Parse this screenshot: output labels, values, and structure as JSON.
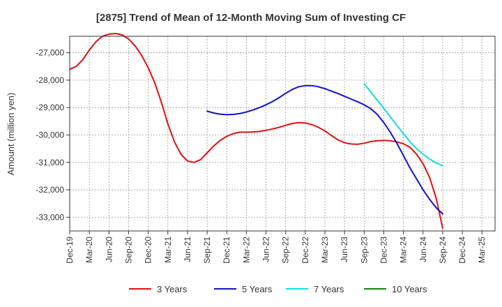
{
  "chart_data": {
    "type": "line",
    "title": "[2875]  Trend of Mean of 12-Month Moving Sum of Investing CF",
    "xlabel": "",
    "ylabel": "Amount (million yen)",
    "ylim": [
      -33500,
      -26400
    ],
    "yticks": [
      -27000,
      -28000,
      -29000,
      -30000,
      -31000,
      -32000,
      -33000
    ],
    "ytick_labels": [
      "-27,000",
      "-28,000",
      "-29,000",
      "-30,000",
      "-31,000",
      "-32,000",
      "-33,000"
    ],
    "xlim": [
      0,
      65
    ],
    "xticks": [
      0,
      3,
      6,
      9,
      12,
      15,
      18,
      21,
      24,
      27,
      30,
      33,
      36,
      39,
      42,
      45,
      48,
      51,
      54,
      57,
      60,
      63
    ],
    "xtick_labels": [
      "Dec-19",
      "Mar-20",
      "Jun-20",
      "Sep-20",
      "Dec-20",
      "Mar-21",
      "Jun-21",
      "Sep-21",
      "Dec-21",
      "Mar-22",
      "Jun-22",
      "Sep-22",
      "Dec-22",
      "Mar-23",
      "Jun-23",
      "Sep-23",
      "Dec-23",
      "Mar-24",
      "Jun-24",
      "Sep-24",
      "Dec-24",
      "Mar-25"
    ],
    "grid": true,
    "legend_position": "bottom",
    "series": [
      {
        "name": "3 Years",
        "color": "#dd1111",
        "x": [
          0,
          1,
          2,
          3,
          4,
          5,
          6,
          7,
          8,
          9,
          10,
          11,
          12,
          13,
          14,
          15,
          16,
          17,
          18,
          19,
          20,
          21,
          22,
          23,
          24,
          25,
          26,
          27,
          28,
          29,
          30,
          31,
          32,
          33,
          34,
          35,
          36,
          37,
          38,
          39,
          40,
          41,
          42,
          43,
          44,
          45,
          46,
          47,
          48,
          49,
          50,
          51,
          52,
          53,
          54,
          55,
          56,
          57
        ],
        "y": [
          -27600,
          -27500,
          -27250,
          -26900,
          -26600,
          -26400,
          -26320,
          -26300,
          -26350,
          -26500,
          -26750,
          -27100,
          -27550,
          -28100,
          -28800,
          -29600,
          -30250,
          -30700,
          -30950,
          -31000,
          -30900,
          -30650,
          -30400,
          -30200,
          -30050,
          -29950,
          -29900,
          -29900,
          -29890,
          -29870,
          -29830,
          -29780,
          -29720,
          -29650,
          -29580,
          -29550,
          -29560,
          -29620,
          -29720,
          -29850,
          -30020,
          -30180,
          -30280,
          -30330,
          -30340,
          -30300,
          -30240,
          -30210,
          -30200,
          -30210,
          -30250,
          -30320,
          -30450,
          -30700,
          -31050,
          -31550,
          -32300,
          -33400
        ]
      },
      {
        "name": "5 Years",
        "color": "#1111cc",
        "x": [
          21,
          22,
          23,
          24,
          25,
          26,
          27,
          28,
          29,
          30,
          31,
          32,
          33,
          34,
          35,
          36,
          37,
          38,
          39,
          40,
          41,
          42,
          43,
          44,
          45,
          46,
          47,
          48,
          49,
          50,
          51,
          52,
          53,
          54,
          55,
          56,
          57
        ],
        "y": [
          -29130,
          -29200,
          -29240,
          -29260,
          -29250,
          -29220,
          -29160,
          -29090,
          -29000,
          -28900,
          -28780,
          -28640,
          -28480,
          -28340,
          -28240,
          -28200,
          -28200,
          -28240,
          -28310,
          -28400,
          -28490,
          -28590,
          -28690,
          -28790,
          -28900,
          -29040,
          -29250,
          -29550,
          -29900,
          -30300,
          -30750,
          -31200,
          -31600,
          -32000,
          -32350,
          -32650,
          -32880
        ]
      },
      {
        "name": "7 Years",
        "color": "#11dddd",
        "x": [
          45,
          46,
          47,
          48,
          49,
          50,
          51,
          52,
          53,
          54,
          55,
          56,
          57
        ],
        "y": [
          -28130,
          -28430,
          -28730,
          -29030,
          -29340,
          -29650,
          -29950,
          -30250,
          -30500,
          -30700,
          -30880,
          -31020,
          -31120
        ]
      },
      {
        "name": "10 Years",
        "color": "#118811",
        "x": [],
        "y": []
      }
    ]
  }
}
